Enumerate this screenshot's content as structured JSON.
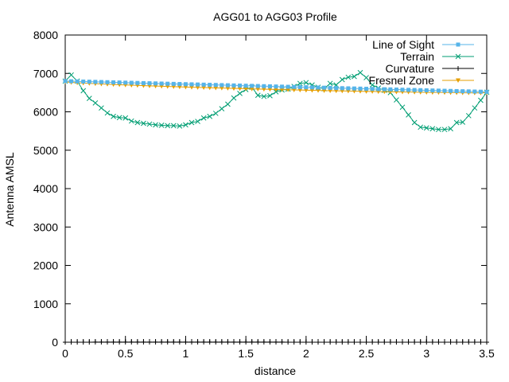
{
  "chart_data": {
    "type": "line",
    "title": "AGG01 to AGG03 Profile",
    "xlabel": "distance",
    "ylabel": "Antenna AMSL",
    "xlim": [
      0,
      3.5
    ],
    "ylim": [
      0,
      8000
    ],
    "x_ticks": [
      0,
      0.5,
      1,
      1.5,
      2,
      2.5,
      3,
      3.5
    ],
    "x_tick_labels": [
      "0",
      "0.5",
      "1",
      "1.5",
      "2",
      "2.5",
      "3",
      "3.5"
    ],
    "y_ticks": [
      0,
      1000,
      2000,
      3000,
      4000,
      5000,
      6000,
      7000,
      8000
    ],
    "y_tick_labels": [
      "0",
      "1000",
      "2000",
      "3000",
      "4000",
      "5000",
      "6000",
      "7000",
      "8000"
    ],
    "x_minor_step": 0.05,
    "legend_position": "top-right",
    "series": [
      {
        "name": "Line of Sight",
        "color": "#56b4e9",
        "marker": "square",
        "x": [
          0,
          0.05,
          0.1,
          0.15,
          0.2,
          0.25,
          0.3,
          0.35,
          0.4,
          0.45,
          0.5,
          0.55,
          0.6,
          0.65,
          0.7,
          0.75,
          0.8,
          0.85,
          0.9,
          0.95,
          1.0,
          1.05,
          1.1,
          1.15,
          1.2,
          1.25,
          1.3,
          1.35,
          1.4,
          1.45,
          1.5,
          1.55,
          1.6,
          1.65,
          1.7,
          1.75,
          1.8,
          1.85,
          1.9,
          1.95,
          2.0,
          2.05,
          2.1,
          2.15,
          2.2,
          2.25,
          2.3,
          2.35,
          2.4,
          2.45,
          2.5,
          2.55,
          2.6,
          2.65,
          2.7,
          2.75,
          2.8,
          2.85,
          2.9,
          2.95,
          3.0,
          3.05,
          3.1,
          3.15,
          3.2,
          3.25,
          3.3,
          3.35,
          3.4,
          3.45,
          3.5
        ],
        "y": [
          6800,
          6796,
          6792,
          6788,
          6784,
          6780,
          6776,
          6772,
          6768,
          6764,
          6760,
          6756,
          6752,
          6748,
          6744,
          6740,
          6736,
          6732,
          6728,
          6724,
          6720,
          6716,
          6712,
          6708,
          6704,
          6700,
          6696,
          6692,
          6688,
          6684,
          6680,
          6676,
          6672,
          6668,
          6664,
          6660,
          6656,
          6652,
          6648,
          6644,
          6640,
          6636,
          6632,
          6628,
          6624,
          6620,
          6616,
          6612,
          6608,
          6604,
          6600,
          6596,
          6592,
          6588,
          6584,
          6580,
          6576,
          6572,
          6568,
          6564,
          6560,
          6556,
          6552,
          6548,
          6544,
          6540,
          6536,
          6532,
          6528,
          6524,
          6520
        ]
      },
      {
        "name": "Terrain",
        "color": "#009e73",
        "marker": "x",
        "x": [
          0,
          0.05,
          0.1,
          0.15,
          0.2,
          0.25,
          0.3,
          0.35,
          0.4,
          0.45,
          0.5,
          0.55,
          0.6,
          0.65,
          0.7,
          0.75,
          0.8,
          0.85,
          0.9,
          0.95,
          1.0,
          1.05,
          1.1,
          1.15,
          1.2,
          1.25,
          1.3,
          1.35,
          1.4,
          1.45,
          1.5,
          1.55,
          1.6,
          1.65,
          1.7,
          1.75,
          1.8,
          1.85,
          1.9,
          1.95,
          2.0,
          2.05,
          2.1,
          2.15,
          2.2,
          2.25,
          2.3,
          2.35,
          2.4,
          2.45,
          2.5,
          2.55,
          2.6,
          2.65,
          2.7,
          2.75,
          2.8,
          2.85,
          2.9,
          2.95,
          3.0,
          3.05,
          3.1,
          3.15,
          3.2,
          3.25,
          3.3,
          3.35,
          3.4,
          3.45,
          3.5
        ],
        "y": [
          6800,
          6960,
          6800,
          6550,
          6350,
          6230,
          6100,
          5970,
          5880,
          5850,
          5840,
          5760,
          5720,
          5700,
          5680,
          5660,
          5650,
          5640,
          5640,
          5630,
          5660,
          5720,
          5750,
          5840,
          5880,
          5960,
          6080,
          6200,
          6360,
          6480,
          6580,
          6640,
          6430,
          6400,
          6420,
          6520,
          6570,
          6590,
          6660,
          6740,
          6760,
          6700,
          6640,
          6600,
          6740,
          6700,
          6840,
          6900,
          6920,
          7020,
          6890,
          6700,
          6620,
          6560,
          6500,
          6310,
          6120,
          5920,
          5720,
          5600,
          5580,
          5560,
          5540,
          5540,
          5560,
          5720,
          5730,
          5900,
          6100,
          6300,
          6510
        ]
      },
      {
        "name": "Curvature",
        "color": "#000000",
        "marker": "plus",
        "x": [
          0,
          0.05,
          0.1,
          0.15,
          0.2,
          0.25,
          0.3,
          0.35,
          0.4,
          0.45,
          0.5,
          0.55,
          0.6,
          0.65,
          0.7,
          0.75,
          0.8,
          0.85,
          0.9,
          0.95,
          1.0,
          1.05,
          1.1,
          1.15,
          1.2,
          1.25,
          1.3,
          1.35,
          1.4,
          1.45,
          1.5,
          1.55,
          1.6,
          1.65,
          1.7,
          1.75,
          1.8,
          1.85,
          1.9,
          1.95,
          2.0,
          2.05,
          2.1,
          2.15,
          2.2,
          2.25,
          2.3,
          2.35,
          2.4,
          2.45,
          2.5,
          2.55,
          2.6,
          2.65,
          2.7,
          2.75,
          2.8,
          2.85,
          2.9,
          2.95,
          3.0,
          3.05,
          3.1,
          3.15,
          3.2,
          3.25,
          3.3,
          3.35,
          3.4,
          3.45,
          3.5
        ],
        "y": [
          0,
          0.3,
          0.6,
          0.9,
          1.1,
          1.4,
          1.6,
          1.8,
          2.0,
          2.2,
          2.3,
          2.5,
          2.6,
          2.7,
          2.8,
          2.9,
          3.0,
          3.0,
          3.1,
          3.1,
          3.1,
          3.1,
          3.1,
          3.1,
          3.0,
          3.0,
          2.9,
          2.8,
          2.7,
          2.6,
          2.5,
          2.3,
          2.2,
          2.0,
          1.8,
          1.6,
          1.4,
          1.1,
          0.9,
          0.6,
          0.3,
          0.2,
          0.2,
          0.2,
          0.2,
          0.1,
          0.1,
          0.1,
          0.1,
          0.1,
          0.1,
          0.1,
          0.1,
          0.1,
          0.1,
          0.1,
          0.1,
          0.1,
          0.1,
          0.1,
          0.1,
          0.1,
          0.1,
          0.1,
          0.1,
          0.1,
          0.1,
          0.1,
          0.1,
          0.1,
          0
        ]
      },
      {
        "name": "Fresnel Zone",
        "color": "#e69f00",
        "marker": "triangle-down",
        "x": [
          0,
          0.05,
          0.1,
          0.15,
          0.2,
          0.25,
          0.3,
          0.35,
          0.4,
          0.45,
          0.5,
          0.55,
          0.6,
          0.65,
          0.7,
          0.75,
          0.8,
          0.85,
          0.9,
          0.95,
          1.0,
          1.05,
          1.1,
          1.15,
          1.2,
          1.25,
          1.3,
          1.35,
          1.4,
          1.45,
          1.5,
          1.55,
          1.6,
          1.65,
          1.7,
          1.75,
          1.8,
          1.85,
          1.9,
          1.95,
          2.0,
          2.05,
          2.1,
          2.15,
          2.2,
          2.25,
          2.3,
          2.35,
          2.4,
          2.45,
          2.5,
          2.55,
          2.6,
          2.65,
          2.7,
          2.75,
          2.8,
          2.85,
          2.9,
          2.95,
          3.0,
          3.05,
          3.1,
          3.15,
          3.2,
          3.25,
          3.3,
          3.35,
          3.4,
          3.45,
          3.5
        ],
        "y": [
          6780,
          6766,
          6756,
          6748,
          6740,
          6733,
          6726,
          6719,
          6712,
          6706,
          6700,
          6694,
          6688,
          6682,
          6677,
          6671,
          6666,
          6661,
          6656,
          6651,
          6646,
          6641,
          6636,
          6632,
          6627,
          6623,
          6618,
          6614,
          6610,
          6605,
          6601,
          6597,
          6593,
          6589,
          6585,
          6581,
          6578,
          6574,
          6570,
          6567,
          6563,
          6560,
          6557,
          6553,
          6550,
          6547,
          6544,
          6541,
          6538,
          6535,
          6532,
          6530,
          6527,
          6524,
          6522,
          6519,
          6517,
          6515,
          6512,
          6510,
          6508,
          6506,
          6504,
          6502,
          6500,
          6498,
          6496,
          6495,
          6493,
          6492,
          6500
        ]
      }
    ]
  }
}
